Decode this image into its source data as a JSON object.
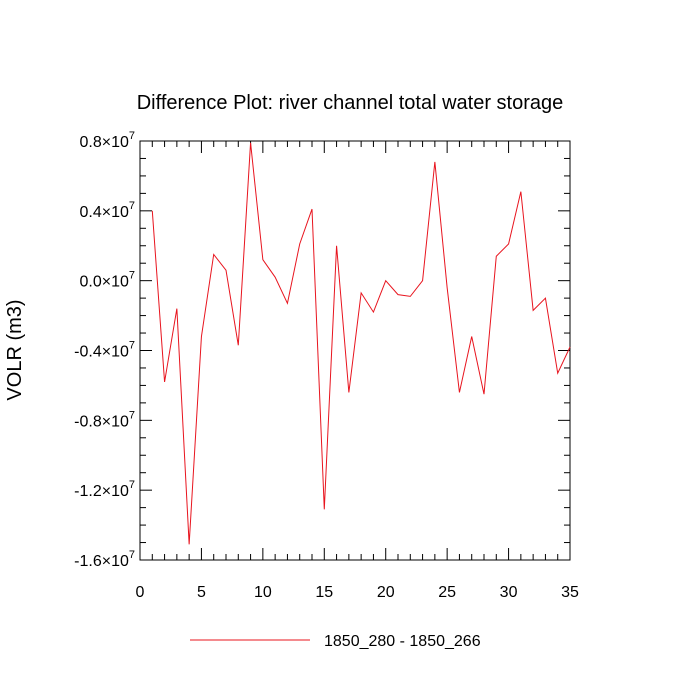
{
  "chart_data": {
    "type": "line",
    "title": "Difference Plot: river channel total water storage",
    "xlabel": "",
    "ylabel": "VOLR  (m3)",
    "xlim": [
      0,
      35
    ],
    "ylim": [
      -16000000,
      8000000
    ],
    "x_ticks": [
      0,
      5,
      10,
      15,
      20,
      25,
      30,
      35
    ],
    "x_tick_labels": [
      "0",
      "5",
      "10",
      "15",
      "20",
      "25",
      "30",
      "35"
    ],
    "y_ticks": [
      -16000000,
      -12000000,
      -8000000,
      -4000000,
      0,
      4000000,
      8000000
    ],
    "y_tick_labels": [
      {
        "mant": "-1.6",
        "exp": "7"
      },
      {
        "mant": "-1.2",
        "exp": "7"
      },
      {
        "mant": "-0.8",
        "exp": "7"
      },
      {
        "mant": "-0.4",
        "exp": "7"
      },
      {
        "mant": "0.0",
        "exp": "7"
      },
      {
        "mant": "0.4",
        "exp": "7"
      },
      {
        "mant": "0.8",
        "exp": "7"
      }
    ],
    "grid": false,
    "legend_position": "bottom",
    "series": [
      {
        "name": "1850_280 - 1850_266",
        "color": "#e8141e",
        "x": [
          1,
          2,
          3,
          4,
          5,
          6,
          7,
          8,
          9,
          10,
          11,
          12,
          13,
          14,
          15,
          16,
          17,
          18,
          19,
          20,
          21,
          22,
          23,
          24,
          25,
          26,
          27,
          28,
          29,
          30,
          31,
          32,
          33,
          34,
          35
        ],
        "y": [
          4000000,
          -5800000,
          -1600000,
          -15100000,
          -3200000,
          1500000,
          600000,
          -3700000,
          7900000,
          1200000,
          200000,
          -1300000,
          2100000,
          4100000,
          -13100000,
          2000000,
          -6400000,
          -700000,
          -1800000,
          0,
          -800000,
          -900000,
          0,
          6800000,
          -400000,
          -6400000,
          -3200000,
          -6500000,
          1400000,
          2100000,
          5100000,
          -1700000,
          -1000000,
          -5300000,
          -3800000
        ]
      }
    ]
  }
}
